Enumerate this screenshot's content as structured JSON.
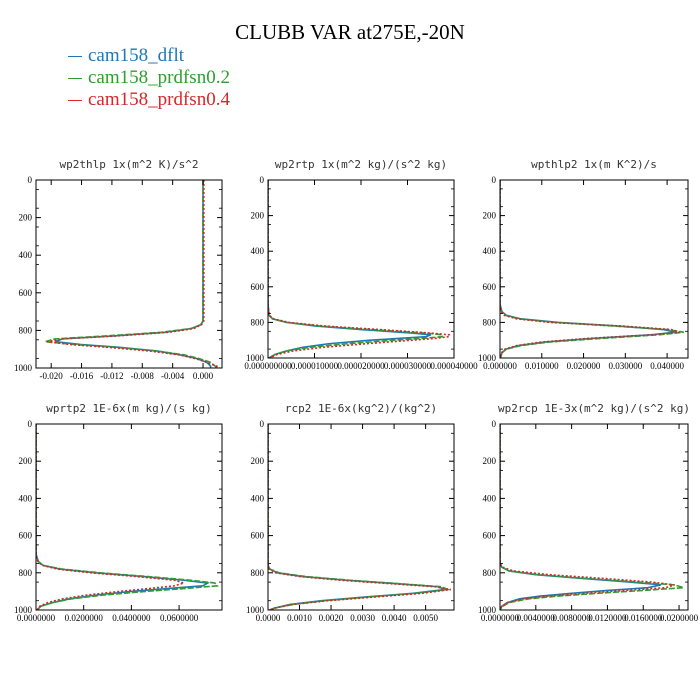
{
  "figure": {
    "title": "CLUBB VAR at275E,-20N",
    "legend": [
      {
        "name": "cam158_dflt",
        "color": "#1f77b4"
      },
      {
        "name": "cam158_prdfsn0.2",
        "color": "#2ca02c"
      },
      {
        "name": "cam158_prdfsn0.4",
        "color": "#d62728"
      }
    ]
  },
  "chart_data": [
    {
      "type": "line",
      "title": "wp2thlp  1x(m^2 K)/s^2",
      "xlim": [
        -0.022,
        0.0025
      ],
      "ylim": [
        1000,
        0
      ],
      "xticks": [
        "-0.020",
        "-0.016",
        "-0.012",
        "-0.008",
        "-0.004",
        "0.000"
      ],
      "xtick_values": [
        -0.02,
        -0.016,
        -0.012,
        -0.008,
        -0.004,
        0.0
      ],
      "yticks": [
        "0",
        "200",
        "400",
        "600",
        "800",
        "1000"
      ],
      "ytick_values": [
        0,
        200,
        400,
        600,
        800,
        1000
      ],
      "y": [
        0,
        100,
        200,
        300,
        400,
        500,
        600,
        700,
        750,
        770,
        790,
        810,
        830,
        845,
        860,
        875,
        890,
        910,
        930,
        950,
        970,
        990,
        1000
      ],
      "series": [
        {
          "name": "cam158_dflt",
          "values": [
            0.0,
            0.0,
            0.0,
            0.0,
            0.0,
            0.0,
            0.0,
            0.0,
            0.0,
            -0.0003,
            -0.0015,
            -0.005,
            -0.012,
            -0.0185,
            -0.0195,
            -0.016,
            -0.011,
            -0.006,
            -0.003,
            -0.0008,
            0.0005,
            0.001,
            0.001
          ]
        },
        {
          "name": "cam158_prdfsn0.2",
          "values": [
            0.0,
            0.0,
            0.0,
            0.0,
            0.0,
            0.0,
            0.0,
            0.0,
            0.0,
            -0.0003,
            -0.0016,
            -0.0055,
            -0.013,
            -0.0195,
            -0.0208,
            -0.017,
            -0.0115,
            -0.006,
            -0.0025,
            -0.0005,
            0.001,
            0.0016,
            0.0018
          ]
        },
        {
          "name": "cam158_prdfsn0.4",
          "values": [
            0.0001,
            0.0001,
            0.0001,
            0.0001,
            0.0001,
            0.0001,
            0.0001,
            0.0001,
            0.0001,
            -0.0002,
            -0.0012,
            -0.0045,
            -0.0115,
            -0.0185,
            -0.0205,
            -0.0175,
            -0.0125,
            -0.007,
            -0.0032,
            -0.001,
            0.0005,
            0.0018,
            0.0022
          ]
        }
      ]
    },
    {
      "type": "line",
      "title": "wp2rtp  1x(m^2 kg)/(s^2 kg)",
      "xlim": [
        0,
        4e-05
      ],
      "ylim": [
        1000,
        0
      ],
      "xticks": [
        "0.000000000",
        "0.000010000",
        "0.000020000",
        "0.000030000",
        "0.000040000"
      ],
      "xtick_values": [
        0,
        1e-05,
        2e-05,
        3e-05,
        4e-05
      ],
      "yticks": [
        "0",
        "200",
        "400",
        "600",
        "800",
        "1000"
      ],
      "ytick_values": [
        0,
        200,
        400,
        600,
        800,
        1000
      ],
      "y": [
        0,
        700,
        760,
        780,
        800,
        820,
        840,
        860,
        870,
        880,
        890,
        900,
        920,
        940,
        960,
        980,
        1000
      ],
      "series": [
        {
          "name": "cam158_dflt",
          "values": [
            0,
            0,
            2e-07,
            1e-06,
            4e-06,
            1e-05,
            2e-05,
            3.1e-05,
            3.5e-05,
            3.4e-05,
            2.8e-05,
            2.2e-05,
            1.3e-05,
            7.5e-06,
            4e-06,
            1.5e-06,
            2e-07
          ]
        },
        {
          "name": "cam158_prdfsn0.2",
          "values": [
            0,
            0,
            2e-07,
            1e-06,
            4e-06,
            1.1e-05,
            2.2e-05,
            3.4e-05,
            3.75e-05,
            3.75e-05,
            3.3e-05,
            2.7e-05,
            1.7e-05,
            9e-06,
            4e-06,
            1.5e-06,
            2e-07
          ]
        },
        {
          "name": "cam158_prdfsn0.4",
          "values": [
            0,
            0,
            3e-07,
            1.2e-06,
            4.5e-06,
            1.2e-05,
            2.4e-05,
            3.5e-05,
            3.9e-05,
            3.9e-05,
            3.6e-05,
            3.1e-05,
            2.1e-05,
            1.2e-05,
            5.5e-06,
            2e-06,
            3e-07
          ]
        }
      ]
    },
    {
      "type": "line",
      "title": "wpthlp2  1x(m K^2)/s",
      "xlim": [
        0,
        0.045
      ],
      "ylim": [
        1000,
        0
      ],
      "xticks": [
        "0.000000",
        "0.010000",
        "0.020000",
        "0.030000",
        "0.040000"
      ],
      "xtick_values": [
        0,
        0.01,
        0.02,
        0.03,
        0.04
      ],
      "yticks": [
        "0",
        "200",
        "400",
        "600",
        "800",
        "1000"
      ],
      "ytick_values": [
        0,
        200,
        400,
        600,
        800,
        1000
      ],
      "y": [
        0,
        700,
        740,
        760,
        780,
        800,
        820,
        840,
        855,
        870,
        890,
        910,
        930,
        950,
        970,
        990,
        1000
      ],
      "series": [
        {
          "name": "cam158_dflt",
          "values": [
            0,
            0,
            0.0005,
            0.0015,
            0.005,
            0.014,
            0.028,
            0.039,
            0.042,
            0.036,
            0.022,
            0.011,
            0.0045,
            0.0015,
            0.0005,
            0.0002,
            0.0001
          ]
        },
        {
          "name": "cam158_prdfsn0.2",
          "values": [
            0,
            0,
            0.0004,
            0.0013,
            0.0045,
            0.013,
            0.027,
            0.04,
            0.044,
            0.038,
            0.024,
            0.012,
            0.005,
            0.0015,
            0.0005,
            0.0002,
            0.0001
          ]
        },
        {
          "name": "cam158_prdfsn0.4",
          "values": [
            0,
            0,
            0.0003,
            0.001,
            0.004,
            0.012,
            0.029,
            0.041,
            0.043,
            0.036,
            0.021,
            0.01,
            0.004,
            0.0012,
            0.0004,
            0.0002,
            0.0001
          ]
        }
      ]
    },
    {
      "type": "line",
      "title": "wprtp2  1E-6x(m kg)/(s kg)",
      "xlim": [
        0,
        0.078
      ],
      "ylim": [
        1000,
        0
      ],
      "xticks": [
        "0.0000000",
        "0.0200000",
        "0.0400000",
        "0.0600000"
      ],
      "xtick_values": [
        0,
        0.02,
        0.04,
        0.06
      ],
      "yticks": [
        "0",
        "200",
        "400",
        "600",
        "800",
        "1000"
      ],
      "ytick_values": [
        0,
        200,
        400,
        600,
        800,
        1000
      ],
      "y": [
        0,
        700,
        740,
        760,
        780,
        800,
        820,
        840,
        855,
        870,
        885,
        900,
        920,
        940,
        960,
        980,
        1000
      ],
      "series": [
        {
          "name": "cam158_dflt",
          "values": [
            0,
            0,
            0.001,
            0.003,
            0.01,
            0.025,
            0.045,
            0.062,
            0.072,
            0.07,
            0.055,
            0.04,
            0.025,
            0.014,
            0.007,
            0.002,
            0.0005
          ]
        },
        {
          "name": "cam158_prdfsn0.2",
          "values": [
            0,
            0,
            0.001,
            0.003,
            0.011,
            0.027,
            0.047,
            0.065,
            0.075,
            0.076,
            0.062,
            0.046,
            0.028,
            0.015,
            0.007,
            0.002,
            0.0005
          ]
        },
        {
          "name": "cam158_prdfsn0.4",
          "values": [
            0,
            0,
            0.0008,
            0.0025,
            0.009,
            0.023,
            0.042,
            0.058,
            0.062,
            0.058,
            0.047,
            0.035,
            0.021,
            0.011,
            0.005,
            0.0015,
            0.0004
          ]
        }
      ]
    },
    {
      "type": "line",
      "title": "rcp2  1E-6x(kg^2)/(kg^2)",
      "xlim": [
        0,
        0.0059
      ],
      "ylim": [
        1000,
        0
      ],
      "xticks": [
        "0.0000",
        "0.0010",
        "0.0020",
        "0.0030",
        "0.0040",
        "0.0050"
      ],
      "xtick_values": [
        0,
        0.001,
        0.002,
        0.003,
        0.004,
        0.005
      ],
      "yticks": [
        "0",
        "200",
        "400",
        "600",
        "800",
        "1000"
      ],
      "ytick_values": [
        0,
        200,
        400,
        600,
        800,
        1000
      ],
      "y": [
        0,
        760,
        780,
        800,
        820,
        840,
        860,
        875,
        890,
        910,
        930,
        950,
        970,
        990,
        1000
      ],
      "series": [
        {
          "name": "cam158_dflt",
          "values": [
            0,
            0,
            5e-05,
            0.0003,
            0.0011,
            0.0025,
            0.0042,
            0.0054,
            0.0056,
            0.0046,
            0.0031,
            0.0017,
            0.0007,
            0.0002,
            5e-05
          ]
        },
        {
          "name": "cam158_prdfsn0.2",
          "values": [
            0,
            0,
            6e-05,
            0.00035,
            0.0012,
            0.0026,
            0.0043,
            0.0055,
            0.0057,
            0.0047,
            0.0032,
            0.0018,
            0.0008,
            0.0002,
            5e-05
          ]
        },
        {
          "name": "cam158_prdfsn0.4",
          "values": [
            0,
            0,
            4e-05,
            0.00025,
            0.001,
            0.0023,
            0.004,
            0.0053,
            0.0058,
            0.0049,
            0.0034,
            0.0019,
            0.0008,
            0.0002,
            5e-05
          ]
        }
      ]
    },
    {
      "type": "line",
      "title": "wp2rcp  1E-3x(m^2 kg)/(s^2 kg)",
      "xlim": [
        0,
        0.021
      ],
      "ylim": [
        1000,
        0
      ],
      "xticks": [
        "0.0000000",
        "0.0040000",
        "0.0080000",
        "0.0120000",
        "0.0160000",
        "0.0200000"
      ],
      "xtick_values": [
        0,
        0.004,
        0.008,
        0.012,
        0.016,
        0.02
      ],
      "yticks": [
        "0",
        "200",
        "400",
        "600",
        "800",
        "1000"
      ],
      "ytick_values": [
        0,
        200,
        400,
        600,
        800,
        1000
      ],
      "y": [
        0,
        750,
        770,
        790,
        810,
        830,
        850,
        865,
        880,
        895,
        910,
        925,
        940,
        960,
        980,
        1000
      ],
      "series": [
        {
          "name": "cam158_dflt",
          "values": [
            0,
            0,
            0.0002,
            0.001,
            0.004,
            0.009,
            0.0145,
            0.018,
            0.0165,
            0.012,
            0.008,
            0.0045,
            0.0022,
            0.0008,
            0.0002,
            0
          ]
        },
        {
          "name": "cam158_prdfsn0.2",
          "values": [
            0,
            0,
            0.0002,
            0.001,
            0.0042,
            0.0095,
            0.0155,
            0.0195,
            0.0205,
            0.016,
            0.011,
            0.0065,
            0.0032,
            0.001,
            0.0003,
            0
          ]
        },
        {
          "name": "cam158_prdfsn0.4",
          "values": [
            0,
            0,
            0.0003,
            0.0015,
            0.0055,
            0.0115,
            0.017,
            0.0195,
            0.0185,
            0.014,
            0.0095,
            0.0055,
            0.0026,
            0.0009,
            0.0002,
            0
          ]
        }
      ]
    }
  ]
}
